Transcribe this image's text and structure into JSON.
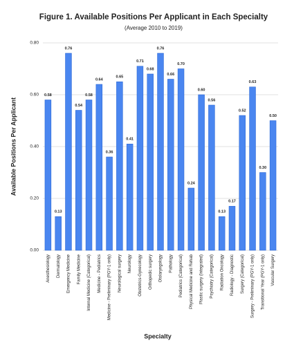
{
  "chart_data": {
    "type": "bar",
    "title": "Figure 1. Available Positions Per Applicant in Each Specialty",
    "subtitle": "(Average 2010 to 2019)",
    "x_label": "Specialty",
    "y_label": "Available Positions Per Applicant",
    "categories": [
      "Anesthesiology",
      "Dermatology",
      "Emergency Medicine",
      "Family Medicine",
      "Internal Medicine (Categorical)",
      "Medicine - Pediatrics",
      "Medicine - Preliminary (PGY-1 only)",
      "Neurological surgery",
      "Neurology",
      "Obstetrics-Gynecology",
      "Orthopedic surgery",
      "Otolaryngology",
      "Pathology",
      "Pediatrics (Categorical)",
      "Physical Medicine and Rehab",
      "Plastic surgery (Integrated)",
      "Psychiatry (Categorical)",
      "Radiation Oncology",
      "Radiology - Diagnostic",
      "Surgery (Categorical)",
      "Surgery - Preliminary (PGY-1 only)",
      "Transitional Year (PGY-1 only)",
      "Vascular Surgery"
    ],
    "values": [
      0.58,
      0.13,
      0.76,
      0.54,
      0.58,
      0.64,
      0.36,
      0.65,
      0.41,
      0.71,
      0.68,
      0.76,
      0.66,
      0.7,
      0.24,
      0.6,
      0.56,
      0.13,
      0.17,
      0.52,
      0.63,
      0.3,
      0.5
    ],
    "value_labels": [
      "0.58",
      "0.13",
      "0.76",
      "0.54",
      "0.58",
      "0.64",
      "0.36",
      "0.65",
      "0.41",
      "0.71",
      "0.68",
      "0.76",
      "0.66",
      "0.70",
      "0.24",
      "0.60",
      "0.56",
      "0.13",
      "0.17",
      "0.52",
      "0.63",
      "0.30",
      "0.50"
    ],
    "color": "#4a86f0",
    "ylim": [
      0,
      0.8
    ],
    "yticks": [
      {
        "value": 0,
        "label": "0.00"
      },
      {
        "value": 0.2,
        "label": "0.20"
      },
      {
        "value": 0.4,
        "label": "0.40"
      },
      {
        "value": 0.6,
        "label": "0.60"
      },
      {
        "value": 0.8,
        "label": "0.80"
      }
    ],
    "grid": true
  }
}
